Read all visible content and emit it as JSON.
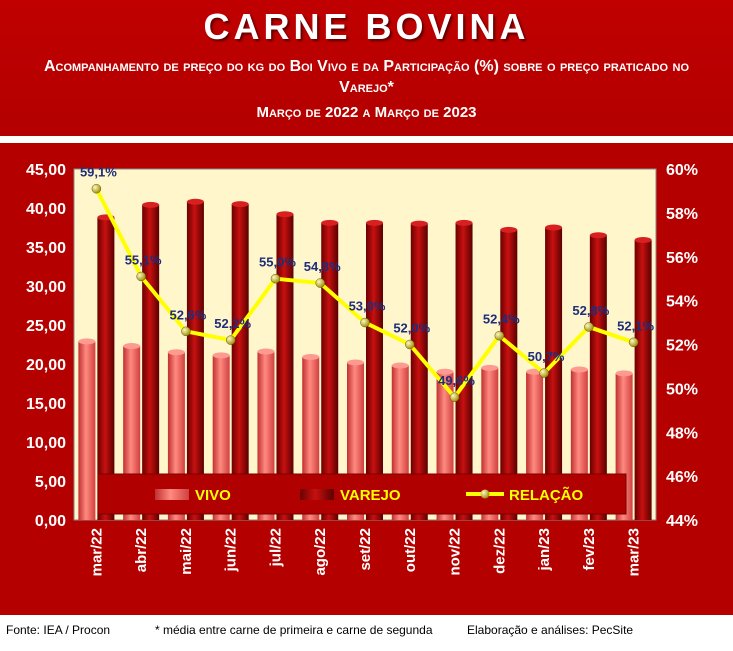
{
  "header": {
    "title": "CARNE BOVINA",
    "subtitle": "Acompanhamento de preço do kg do Boi Vivo e da Participação (%) sobre o preço praticado no Varejo*",
    "period": "Março de 2022 a Março de 2023"
  },
  "footer": {
    "source": "Fonte: IEA / Procon",
    "note": "* média entre carne de primeira e carne de segunda",
    "credit": "Elaboração e análises: PecSite"
  },
  "colors": {
    "header_bg": "#c00000",
    "panel_bg": "#b50000",
    "plot_bg": "#fff6cc",
    "vivo": "#e8504e",
    "varejo": "#a00000",
    "relacao_line": "#ffff00",
    "relacao_marker": "#b8a000",
    "label_text": "#1f2e7a",
    "legend_text": "#ffff00"
  },
  "chart_data": {
    "type": "bar",
    "categories": [
      "mar/22",
      "abr/22",
      "mai/22",
      "jun/22",
      "jul/22",
      "ago/22",
      "set/22",
      "out/22",
      "nov/22",
      "dez/22",
      "jan/23",
      "fev/23",
      "mar/23"
    ],
    "series": [
      {
        "name": "VIVO",
        "type": "bar",
        "axis": "left",
        "values": [
          22.9,
          22.3,
          21.5,
          21.1,
          21.6,
          20.9,
          20.2,
          19.8,
          19.0,
          19.5,
          19.0,
          19.3,
          18.8
        ]
      },
      {
        "name": "VAREJO",
        "type": "bar",
        "axis": "left",
        "values": [
          38.8,
          40.4,
          40.8,
          40.5,
          39.2,
          38.1,
          38.1,
          38.0,
          38.1,
          37.2,
          37.5,
          36.5,
          35.9
        ]
      },
      {
        "name": "RELAÇÃO",
        "type": "line",
        "axis": "right",
        "values": [
          59.1,
          55.1,
          52.6,
          52.2,
          55.0,
          54.8,
          53.0,
          52.0,
          49.6,
          52.4,
          50.7,
          52.8,
          52.1
        ],
        "labels": [
          "59,1%",
          "55,1%",
          "52,6%",
          "52,2%",
          "55,0%",
          "54,8%",
          "53,0%",
          "52,0%",
          "49,6%",
          "52,4%",
          "50,7%",
          "52,8%",
          "52,1%"
        ]
      }
    ],
    "y_left": {
      "ylim": [
        0,
        45
      ],
      "ticks": [
        "0,00",
        "5,00",
        "10,00",
        "15,00",
        "20,00",
        "25,00",
        "30,00",
        "35,00",
        "40,00",
        "45,00"
      ]
    },
    "y_right": {
      "ylim": [
        44,
        60
      ],
      "ticks": [
        "44%",
        "46%",
        "48%",
        "50%",
        "52%",
        "54%",
        "56%",
        "58%",
        "60%"
      ]
    },
    "legend": {
      "placement": "bottom-inside",
      "items": [
        "VIVO",
        "VAREJO",
        "RELAÇÃO"
      ]
    },
    "grid": false
  }
}
